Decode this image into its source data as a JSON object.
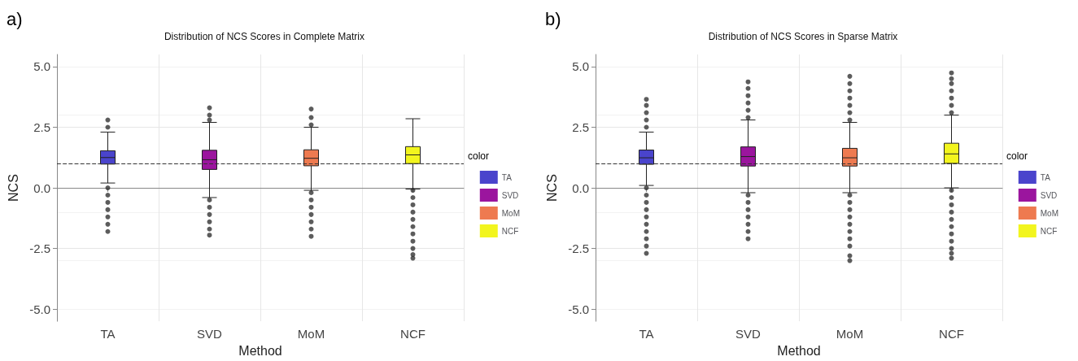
{
  "chart_data": [
    {
      "type": "box",
      "title": "Distribution of NCS Scores in Complete Matrix",
      "xlabel": "Method",
      "ylabel": "NCS",
      "legend_title": "color",
      "annotations": [
        "a)"
      ],
      "categories": [
        "TA",
        "SVD",
        "MoM",
        "NCF"
      ],
      "series": [
        {
          "name": "TA",
          "color": "#4a44cc",
          "boxes": [
            {
              "low": 0.2,
              "q1": 0.98,
              "median": 1.25,
              "q3": 1.53,
              "high": 2.3,
              "outliers": [
                2.5,
                2.8,
                0.0,
                -0.3,
                -0.6,
                -0.9,
                -1.2,
                -1.5,
                -1.8
              ]
            },
            null,
            null,
            null
          ]
        },
        {
          "name": "SVD",
          "color": "#9b159e",
          "boxes": [
            null,
            {
              "low": -0.4,
              "q1": 0.76,
              "median": 1.16,
              "q3": 1.55,
              "high": 2.7,
              "outliers": [
                2.8,
                3.0,
                3.3,
                -0.5,
                -0.8,
                -1.1,
                -1.4,
                -1.7,
                -1.95
              ]
            },
            null,
            null
          ]
        },
        {
          "name": "MoM",
          "color": "#ee7a50",
          "boxes": [
            null,
            null,
            {
              "low": -0.1,
              "q1": 0.91,
              "median": 1.22,
              "q3": 1.57,
              "high": 2.5,
              "outliers": [
                2.6,
                2.9,
                3.25,
                -0.2,
                -0.5,
                -0.8,
                -1.1,
                -1.4,
                -1.7,
                -2.0
              ]
            },
            null
          ]
        },
        {
          "name": "NCF",
          "color": "#f2f51e",
          "boxes": [
            null,
            null,
            null,
            {
              "low": -0.05,
              "q1": 1.0,
              "median": 1.36,
              "q3": 1.7,
              "high": 2.85,
              "outliers": [
                -0.1,
                -0.4,
                -0.7,
                -1.0,
                -1.3,
                -1.6,
                -1.9,
                -2.2,
                -2.5,
                -2.75,
                -2.9
              ]
            }
          ]
        }
      ],
      "ylim": [
        -5.5,
        5.5
      ],
      "yticks": [
        {
          "value": -5,
          "label": "-5.0"
        },
        {
          "value": -2.5,
          "label": "-2.5"
        },
        {
          "value": 0,
          "label": "0.0"
        },
        {
          "value": 2.5,
          "label": "2.5"
        },
        {
          "value": 5,
          "label": "5.0"
        }
      ],
      "ref_lines": [
        {
          "axis": "y",
          "value": 1,
          "label": null,
          "line_style": "dashed",
          "color": "#333333"
        }
      ],
      "grid": true,
      "legend": "right"
    },
    {
      "type": "box",
      "title": "Distribution of NCS Scores in Sparse Matrix",
      "xlabel": "Method",
      "ylabel": "NCS",
      "legend_title": "color",
      "annotations": [
        "b)"
      ],
      "categories": [
        "TA",
        "SVD",
        "MoM",
        "NCF"
      ],
      "series": [
        {
          "name": "TA",
          "color": "#4a44cc",
          "boxes": [
            {
              "low": 0.1,
              "q1": 0.97,
              "median": 1.24,
              "q3": 1.56,
              "high": 2.3,
              "outliers": [
                2.5,
                2.8,
                3.1,
                3.4,
                3.65,
                0.0,
                -0.3,
                -0.6,
                -0.9,
                -1.2,
                -1.5,
                -1.8,
                -2.1,
                -2.4,
                -2.7
              ]
            },
            null,
            null,
            null
          ]
        },
        {
          "name": "SVD",
          "color": "#9b159e",
          "boxes": [
            null,
            {
              "low": -0.2,
              "q1": 0.9,
              "median": 1.29,
              "q3": 1.69,
              "high": 2.8,
              "outliers": [
                2.9,
                3.2,
                3.5,
                3.8,
                4.1,
                4.37,
                -0.3,
                -0.6,
                -0.9,
                -1.2,
                -1.5,
                -1.8,
                -2.1
              ]
            },
            null,
            null
          ]
        },
        {
          "name": "MoM",
          "color": "#ee7a50",
          "boxes": [
            null,
            null,
            {
              "low": -0.2,
              "q1": 0.9,
              "median": 1.24,
              "q3": 1.63,
              "high": 2.7,
              "outliers": [
                2.8,
                3.1,
                3.4,
                3.7,
                4.0,
                4.3,
                4.6,
                -0.3,
                -0.6,
                -0.9,
                -1.2,
                -1.5,
                -1.8,
                -2.1,
                -2.4,
                -2.8,
                -3.0
              ]
            },
            null
          ]
        },
        {
          "name": "NCF",
          "color": "#f2f51e",
          "boxes": [
            null,
            null,
            null,
            {
              "low": 0.0,
              "q1": 1.01,
              "median": 1.4,
              "q3": 1.84,
              "high": 3.0,
              "outliers": [
                3.1,
                3.4,
                3.7,
                4.0,
                4.3,
                4.5,
                4.74,
                -0.1,
                -0.4,
                -0.7,
                -1.0,
                -1.3,
                -1.6,
                -1.9,
                -2.2,
                -2.5,
                -2.7,
                -2.9
              ]
            }
          ]
        }
      ],
      "ylim": [
        -5.5,
        5.5
      ],
      "yticks": [
        {
          "value": -5,
          "label": "-5.0"
        },
        {
          "value": -2.5,
          "label": "-2.5"
        },
        {
          "value": 0,
          "label": "0.0"
        },
        {
          "value": 2.5,
          "label": "2.5"
        },
        {
          "value": 5,
          "label": "5.0"
        }
      ],
      "ref_lines": [
        {
          "axis": "y",
          "value": 1,
          "label": null,
          "line_style": "dashed",
          "color": "#333333"
        }
      ],
      "grid": true,
      "legend": "right"
    }
  ]
}
